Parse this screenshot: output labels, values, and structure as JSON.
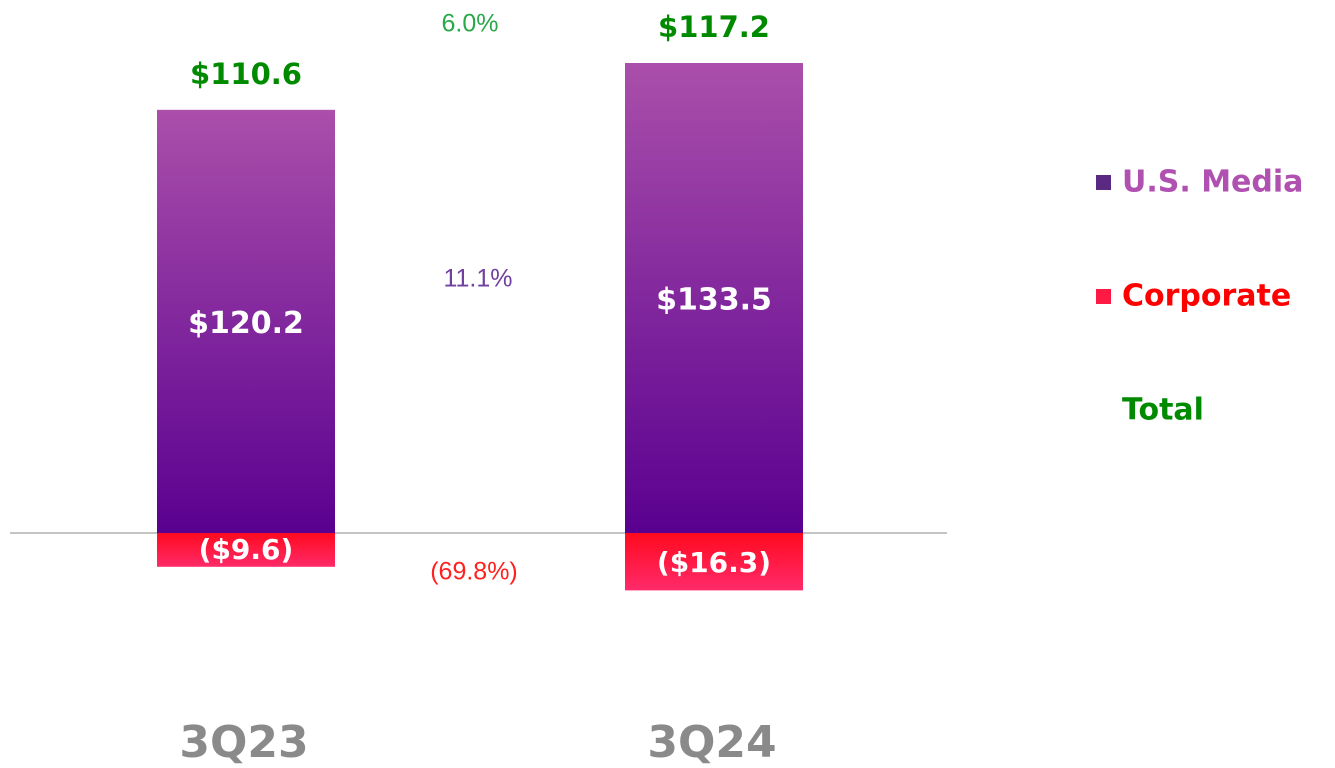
{
  "chart_data": {
    "type": "stacked_bar",
    "categories": [
      "3Q23",
      "3Q24"
    ],
    "series": [
      {
        "name": "U.S. Media",
        "color": "#5a2a82",
        "label_color": "#b050b0",
        "gradient": [
          "#aa4faa",
          "#5a0090"
        ],
        "values": [
          120.2,
          133.5
        ],
        "value_labels": [
          "$120.2",
          "$133.5"
        ]
      },
      {
        "name": "Corporate",
        "color": "#ff1a44",
        "label_color": "#ff0000",
        "gradient": [
          "#ff0a1e",
          "#ff2a6a"
        ],
        "values": [
          -9.6,
          -16.3
        ],
        "value_labels": [
          "($9.6)",
          "($16.3)"
        ]
      },
      {
        "name": "Total",
        "color": "#008a00",
        "label_color": "#008a00",
        "values": [
          110.6,
          117.2
        ],
        "value_labels": [
          "$110.6",
          "$117.2"
        ]
      }
    ],
    "annotations": [
      "6.0%",
      "11.1%",
      "(69.8%)"
    ],
    "annotation_colors": [
      "#2aa84a",
      "#7040a0",
      "#ff2020"
    ]
  }
}
